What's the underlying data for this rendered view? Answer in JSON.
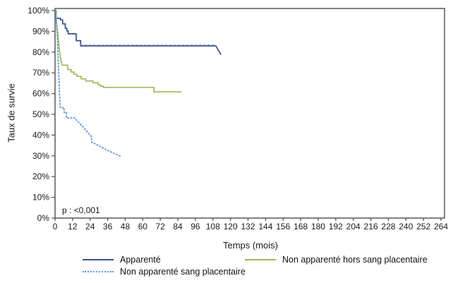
{
  "figure": {
    "p_value_label": "p : <0,001"
  },
  "chart_data": {
    "type": "line",
    "subtype": "kaplan-meier-step-survival",
    "title": "",
    "xlabel": "Temps (mois)",
    "ylabel": "Taux de survie",
    "xlim": [
      0,
      264
    ],
    "ylim": [
      0,
      100
    ],
    "grid": false,
    "legend_position": "bottom",
    "axis_color": "#4d4d4d",
    "text_color": "#1a1a1a",
    "x_ticks": [
      0,
      12,
      24,
      36,
      48,
      60,
      72,
      84,
      96,
      108,
      120,
      132,
      144,
      156,
      168,
      180,
      192,
      204,
      216,
      228,
      240,
      252,
      264
    ],
    "y_tick_labels": [
      "0%",
      "10%",
      "20%",
      "30%",
      "40%",
      "50%",
      "60%",
      "70%",
      "80%",
      "90%",
      "100%"
    ],
    "annotations": [
      {
        "text": "p : <0,001",
        "x_month": 5,
        "y_pct": 4
      }
    ],
    "series": [
      {
        "id": "apparente",
        "name": "Apparenté",
        "color": "#3A4E8C",
        "style": "solid",
        "censor_marks": {
          "start_month": 17.5,
          "end_month": 110,
          "level_pct": 83,
          "color": "#9AA8D4"
        },
        "points": [
          [
            0,
            100
          ],
          [
            0.7,
            100
          ],
          [
            0.7,
            96.3
          ],
          [
            3.7,
            96.3
          ],
          [
            3.7,
            95.5
          ],
          [
            5.2,
            95.5
          ],
          [
            5.2,
            93.6
          ],
          [
            7,
            93.6
          ],
          [
            7,
            91.5
          ],
          [
            8,
            91.5
          ],
          [
            8,
            90.2
          ],
          [
            9,
            90.2
          ],
          [
            9,
            88.8
          ],
          [
            14.5,
            88.8
          ],
          [
            14.5,
            85.5
          ],
          [
            17.5,
            85.5
          ],
          [
            17.5,
            83
          ],
          [
            110,
            83
          ],
          [
            113.5,
            78.7
          ]
        ]
      },
      {
        "id": "non-apparente-hors-sang-placentaire",
        "name": "Non apparenté hors sang placentaire",
        "color": "#9BBB59",
        "style": "solid",
        "points": [
          [
            0,
            100
          ],
          [
            0.6,
            100
          ],
          [
            1.2,
            93
          ],
          [
            1.8,
            89
          ],
          [
            2.4,
            85
          ],
          [
            3,
            81
          ],
          [
            3.6,
            77.5
          ],
          [
            4.3,
            75
          ],
          [
            4.8,
            73.7
          ],
          [
            8.7,
            73.7
          ],
          [
            8.7,
            71.6
          ],
          [
            11,
            71.6
          ],
          [
            11,
            70.4
          ],
          [
            13,
            70.4
          ],
          [
            13,
            69.3
          ],
          [
            15,
            69.3
          ],
          [
            15,
            68.3
          ],
          [
            17.8,
            68.3
          ],
          [
            17.8,
            67.1
          ],
          [
            21,
            67.1
          ],
          [
            21,
            66.1
          ],
          [
            26,
            66.1
          ],
          [
            26,
            65.2
          ],
          [
            29.5,
            65.2
          ],
          [
            29.5,
            64.3
          ],
          [
            31,
            64.3
          ],
          [
            31,
            63.6
          ],
          [
            33,
            63.6
          ],
          [
            33,
            63
          ],
          [
            67.6,
            63
          ],
          [
            67.6,
            60.8
          ],
          [
            86.5,
            60.8
          ]
        ]
      },
      {
        "id": "non-apparente-sang-placentaire",
        "name": "Non apparenté sang placentaire",
        "color": "#5E95D8",
        "style": "dotted",
        "points": [
          [
            0,
            100
          ],
          [
            0.6,
            100
          ],
          [
            1,
            93
          ],
          [
            1.5,
            88
          ],
          [
            2,
            80
          ],
          [
            2.4,
            72
          ],
          [
            2.8,
            64
          ],
          [
            3.2,
            58
          ],
          [
            3.6,
            53.2
          ],
          [
            6.2,
            53.2
          ],
          [
            6.2,
            51
          ],
          [
            7.8,
            51
          ],
          [
            7.8,
            48.3
          ],
          [
            13.3,
            48.3
          ],
          [
            15,
            47
          ],
          [
            17,
            45.5
          ],
          [
            19,
            44
          ],
          [
            21,
            42.5
          ],
          [
            23,
            40.8
          ],
          [
            24.8,
            39.4
          ],
          [
            25.2,
            36.5
          ],
          [
            28,
            35.6
          ],
          [
            31,
            34.5
          ],
          [
            34,
            33.4
          ],
          [
            37,
            32.3
          ],
          [
            40,
            31.3
          ],
          [
            43,
            30.4
          ],
          [
            45.4,
            29.5
          ]
        ]
      }
    ]
  }
}
